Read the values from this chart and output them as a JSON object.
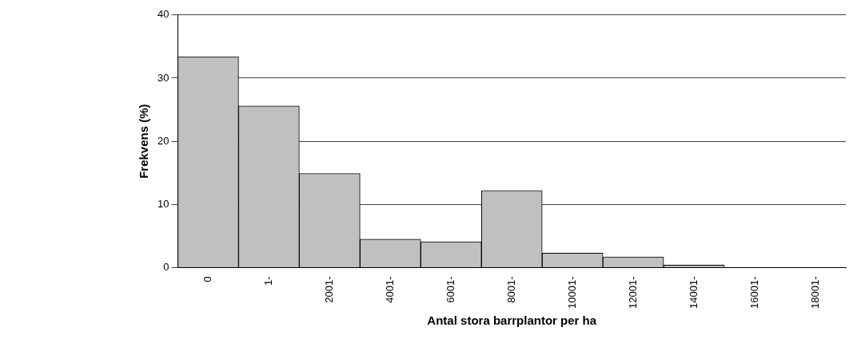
{
  "chart_data": {
    "type": "bar",
    "xlabel": "Antal stora barrplantor per ha",
    "ylabel": "Frekvens (%)",
    "categories": [
      "0",
      "1-",
      "2001-",
      "4001-",
      "6001-",
      "8001-",
      "10001-",
      "12001-",
      "14001-",
      "16001-",
      "18001-"
    ],
    "values": [
      33.4,
      25.6,
      14.9,
      4.5,
      4.1,
      12.2,
      2.3,
      1.7,
      0.4,
      0,
      0
    ],
    "color": "#c0c0c0",
    "ylim": [
      0,
      40
    ],
    "yticks": [
      0,
      10,
      20,
      30,
      40
    ],
    "grid": "y",
    "legend": false
  }
}
